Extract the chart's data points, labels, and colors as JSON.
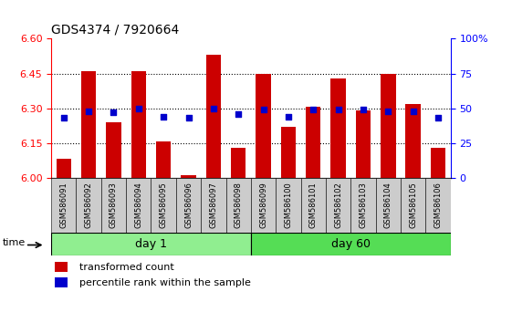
{
  "title": "GDS4374 / 7920664",
  "samples": [
    "GSM586091",
    "GSM586092",
    "GSM586093",
    "GSM586094",
    "GSM586095",
    "GSM586096",
    "GSM586097",
    "GSM586098",
    "GSM586099",
    "GSM586100",
    "GSM586101",
    "GSM586102",
    "GSM586103",
    "GSM586104",
    "GSM586105",
    "GSM586106"
  ],
  "bar_values": [
    6.08,
    6.46,
    6.24,
    6.46,
    6.155,
    6.01,
    6.53,
    6.13,
    6.45,
    6.22,
    6.305,
    6.43,
    6.29,
    6.45,
    6.32,
    6.13
  ],
  "blue_values": [
    43,
    48,
    47,
    50,
    44,
    43,
    50,
    46,
    49,
    44,
    49,
    49,
    49,
    48,
    48,
    43
  ],
  "ylim_left": [
    6.0,
    6.6
  ],
  "ylim_right": [
    0,
    100
  ],
  "yticks_left": [
    6.0,
    6.15,
    6.3,
    6.45,
    6.6
  ],
  "yticks_right": [
    0,
    25,
    50,
    75,
    100
  ],
  "day1_color": "#90EE90",
  "day60_color": "#55DD55",
  "bar_color": "#CC0000",
  "blue_color": "#0000CC",
  "tick_bg_color": "#CCCCCC",
  "day1_samples": 8,
  "day60_samples": 8,
  "legend_red": "transformed count",
  "legend_blue": "percentile rank within the sample",
  "xlabel": "time",
  "title_fontsize": 10,
  "axis_fontsize": 8,
  "sample_fontsize": 6,
  "legend_fontsize": 8
}
